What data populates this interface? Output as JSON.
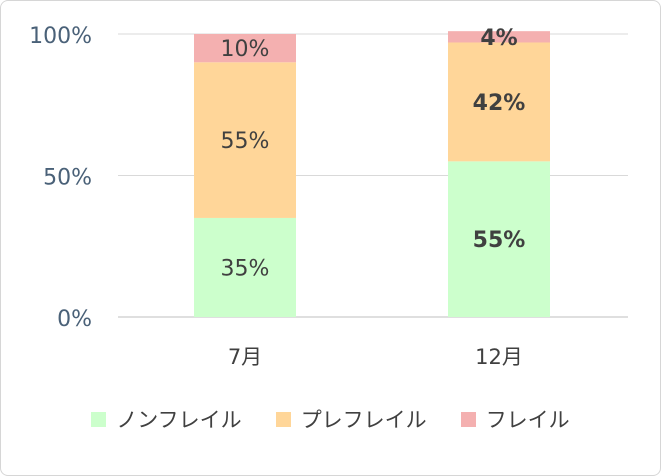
{
  "chart_data": {
    "type": "bar",
    "stacked": true,
    "percent": true,
    "categories": [
      "7月",
      "12月"
    ],
    "series": [
      {
        "name": "ノンフレイル",
        "values": [
          35,
          55
        ],
        "labels": [
          "35%",
          "55%"
        ],
        "color": "#ccffcc"
      },
      {
        "name": "プレフレイル",
        "values": [
          55,
          42
        ],
        "labels": [
          "55%",
          "42%"
        ],
        "color": "#ffd699"
      },
      {
        "name": "フレイル",
        "values": [
          10,
          4
        ],
        "labels": [
          "10%",
          "4%"
        ],
        "color": "#f4b0b0"
      }
    ],
    "bold_labels_category": "12月",
    "ylim": [
      0,
      100
    ],
    "yticks": [
      {
        "value": 0,
        "label": "0%"
      },
      {
        "value": 50,
        "label": "50%"
      },
      {
        "value": 100,
        "label": "100%"
      }
    ],
    "grid": true,
    "legend_position": "bottom"
  }
}
